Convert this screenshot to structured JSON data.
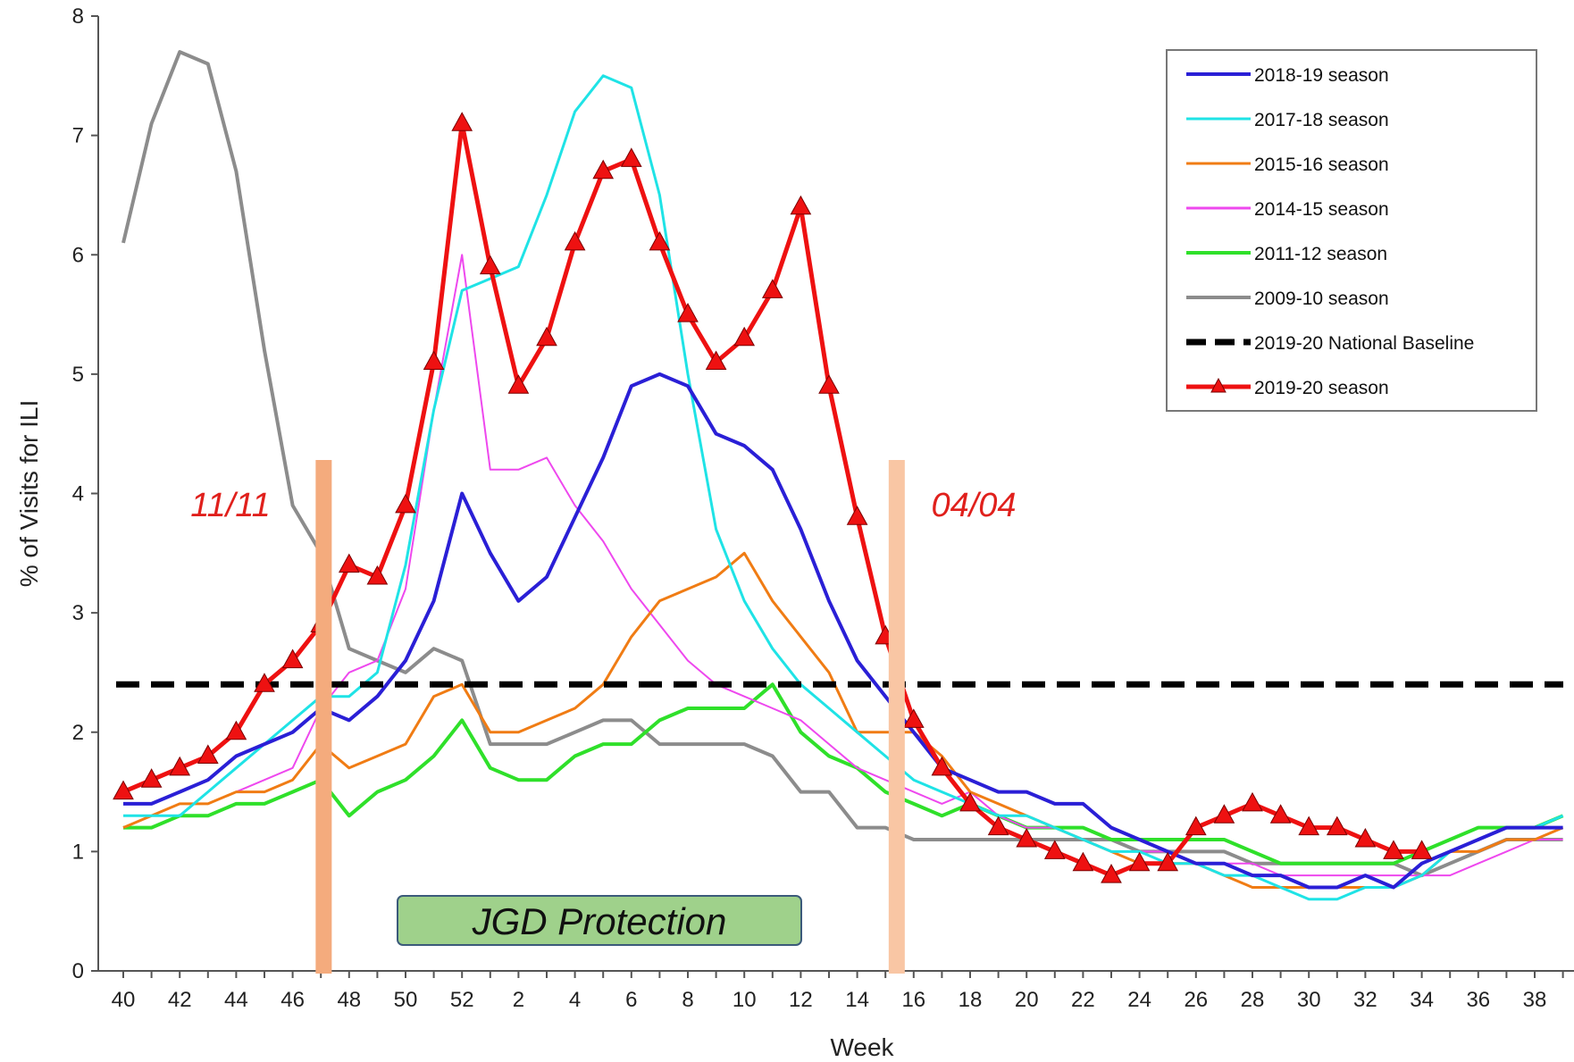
{
  "chart_data": {
    "type": "line",
    "xlabel": "Week",
    "ylabel": "% of Visits for ILI",
    "ylim": [
      0,
      8
    ],
    "yticks": [
      0,
      1,
      2,
      3,
      4,
      5,
      6,
      7,
      8
    ],
    "weeks": [
      40,
      41,
      42,
      43,
      44,
      45,
      46,
      47,
      48,
      49,
      50,
      51,
      52,
      1,
      2,
      3,
      4,
      5,
      6,
      7,
      8,
      9,
      10,
      11,
      12,
      13,
      14,
      15,
      16,
      17,
      18,
      19,
      20,
      21,
      22,
      23,
      24,
      25,
      26,
      27,
      28,
      29,
      30,
      31,
      32,
      33,
      34,
      35,
      36,
      37,
      38,
      39
    ],
    "xtick_labels": [
      "40",
      "42",
      "44",
      "46",
      "48",
      "50",
      "52",
      "2",
      "4",
      "6",
      "8",
      "10",
      "12",
      "14",
      "16",
      "18",
      "20",
      "22",
      "24",
      "26",
      "28",
      "30",
      "32",
      "34",
      "36",
      "38"
    ],
    "grid": false,
    "legend_position": "top-right",
    "baseline": {
      "name": "2019-20 National Baseline",
      "value": 2.4,
      "color": "#000000"
    },
    "series": [
      {
        "name": "2018-19 season",
        "color": "#2a1fd6",
        "width": 4,
        "values": [
          1.4,
          1.4,
          1.5,
          1.6,
          1.8,
          1.9,
          2.0,
          2.2,
          2.1,
          2.3,
          2.6,
          3.1,
          4.0,
          3.5,
          3.1,
          3.3,
          3.8,
          4.3,
          4.9,
          5.0,
          4.9,
          4.5,
          4.4,
          4.2,
          3.7,
          3.1,
          2.6,
          2.3,
          2.0,
          1.7,
          1.6,
          1.5,
          1.5,
          1.4,
          1.4,
          1.2,
          1.1,
          1.0,
          0.9,
          0.9,
          0.8,
          0.8,
          0.7,
          0.7,
          0.8,
          0.7,
          0.9,
          1.0,
          1.1,
          1.2,
          1.2,
          1.2
        ]
      },
      {
        "name": "2017-18 season",
        "color": "#1fe3e6",
        "width": 3,
        "values": [
          1.3,
          1.3,
          1.3,
          1.5,
          1.7,
          1.9,
          2.1,
          2.3,
          2.3,
          2.5,
          3.4,
          4.7,
          5.7,
          5.8,
          5.9,
          6.5,
          7.2,
          7.5,
          7.4,
          6.5,
          5.0,
          3.7,
          3.1,
          2.7,
          2.4,
          2.2,
          2.0,
          1.8,
          1.6,
          1.5,
          1.4,
          1.3,
          1.3,
          1.2,
          1.1,
          1.0,
          1.0,
          0.9,
          0.9,
          0.8,
          0.8,
          0.7,
          0.6,
          0.6,
          0.7,
          0.7,
          0.8,
          1.0,
          1.1,
          1.2,
          1.2,
          1.3
        ]
      },
      {
        "name": "2015-16 season",
        "color": "#f07c14",
        "width": 3,
        "values": [
          1.2,
          1.3,
          1.4,
          1.4,
          1.5,
          1.5,
          1.6,
          1.9,
          1.7,
          1.8,
          1.9,
          2.3,
          2.4,
          2.0,
          2.0,
          2.1,
          2.2,
          2.4,
          2.8,
          3.1,
          3.2,
          3.3,
          3.5,
          3.1,
          2.8,
          2.5,
          2.0,
          2.0,
          2.0,
          1.8,
          1.5,
          1.4,
          1.3,
          1.2,
          1.1,
          1.0,
          0.9,
          0.9,
          0.9,
          0.8,
          0.7,
          0.7,
          0.7,
          0.7,
          0.7,
          0.7,
          0.8,
          1.0,
          1.0,
          1.1,
          1.1,
          1.2
        ]
      },
      {
        "name": "2014-15 season",
        "color": "#ee48ee",
        "width": 2,
        "values": [
          1.2,
          1.3,
          1.4,
          1.4,
          1.5,
          1.6,
          1.7,
          2.2,
          2.5,
          2.6,
          3.2,
          4.7,
          6.0,
          4.2,
          4.2,
          4.3,
          3.9,
          3.6,
          3.2,
          2.9,
          2.6,
          2.4,
          2.3,
          2.2,
          2.1,
          1.9,
          1.7,
          1.6,
          1.5,
          1.4,
          1.5,
          1.3,
          1.2,
          1.2,
          1.1,
          1.0,
          1.0,
          1.0,
          0.9,
          0.9,
          0.9,
          0.8,
          0.8,
          0.8,
          0.8,
          0.8,
          0.8,
          0.8,
          0.9,
          1.0,
          1.1,
          1.1
        ]
      },
      {
        "name": "2011-12 season",
        "color": "#2fe02a",
        "width": 4,
        "values": [
          1.2,
          1.2,
          1.3,
          1.3,
          1.4,
          1.4,
          1.5,
          1.6,
          1.3,
          1.5,
          1.6,
          1.8,
          2.1,
          1.7,
          1.6,
          1.6,
          1.8,
          1.9,
          1.9,
          2.1,
          2.2,
          2.2,
          2.2,
          2.4,
          2.0,
          1.8,
          1.7,
          1.5,
          1.4,
          1.3,
          1.4,
          1.3,
          1.2,
          1.2,
          1.2,
          1.1,
          1.1,
          1.1,
          1.1,
          1.1,
          1.0,
          0.9,
          0.9,
          0.9,
          0.9,
          0.9,
          1.0,
          1.1,
          1.2,
          1.2,
          1.2,
          1.3
        ]
      },
      {
        "name": "2009-10 season",
        "color": "#8c8c8c",
        "width": 4,
        "values": [
          6.1,
          7.1,
          7.7,
          7.6,
          6.7,
          5.2,
          3.9,
          3.5,
          2.7,
          2.6,
          2.5,
          2.7,
          2.6,
          1.9,
          1.9,
          1.9,
          2.0,
          2.1,
          2.1,
          1.9,
          1.9,
          1.9,
          1.9,
          1.8,
          1.5,
          1.5,
          1.2,
          1.2,
          1.1,
          1.1,
          1.1,
          1.1,
          1.1,
          1.1,
          1.1,
          1.1,
          1.0,
          1.0,
          1.0,
          1.0,
          0.9,
          0.9,
          0.9,
          0.9,
          0.9,
          0.9,
          0.8,
          0.9,
          1.0,
          1.1,
          1.1,
          1.1
        ]
      },
      {
        "name": "2019-20 season",
        "color": "#ee1111",
        "width": 5,
        "marker": "triangle",
        "values": [
          1.5,
          1.6,
          1.7,
          1.8,
          2.0,
          2.4,
          2.6,
          2.9,
          3.4,
          3.3,
          3.9,
          5.1,
          7.1,
          5.9,
          4.9,
          5.3,
          6.1,
          6.7,
          6.8,
          6.1,
          5.5,
          5.1,
          5.3,
          5.7,
          6.4,
          4.9,
          3.8,
          2.8,
          2.1,
          1.7,
          1.4,
          1.2,
          1.1,
          1.0,
          0.9,
          0.8,
          0.9,
          0.9,
          1.2,
          1.3,
          1.4,
          1.3,
          1.2,
          1.2,
          1.1,
          1.0,
          1.0
        ]
      }
    ],
    "annotations": [
      {
        "text": "11/11",
        "color": "#e0201c"
      },
      {
        "text": "04/04",
        "color": "#e0201c"
      },
      {
        "text": "JGD Protection",
        "fill": "#9fd18b",
        "stroke": "#3b5a7a"
      }
    ],
    "markers_vertical": [
      {
        "position_week_index": 7.1,
        "color": "#f4ab7d"
      },
      {
        "position_week_index": 27.4,
        "color": "#f9c6a4"
      }
    ]
  }
}
